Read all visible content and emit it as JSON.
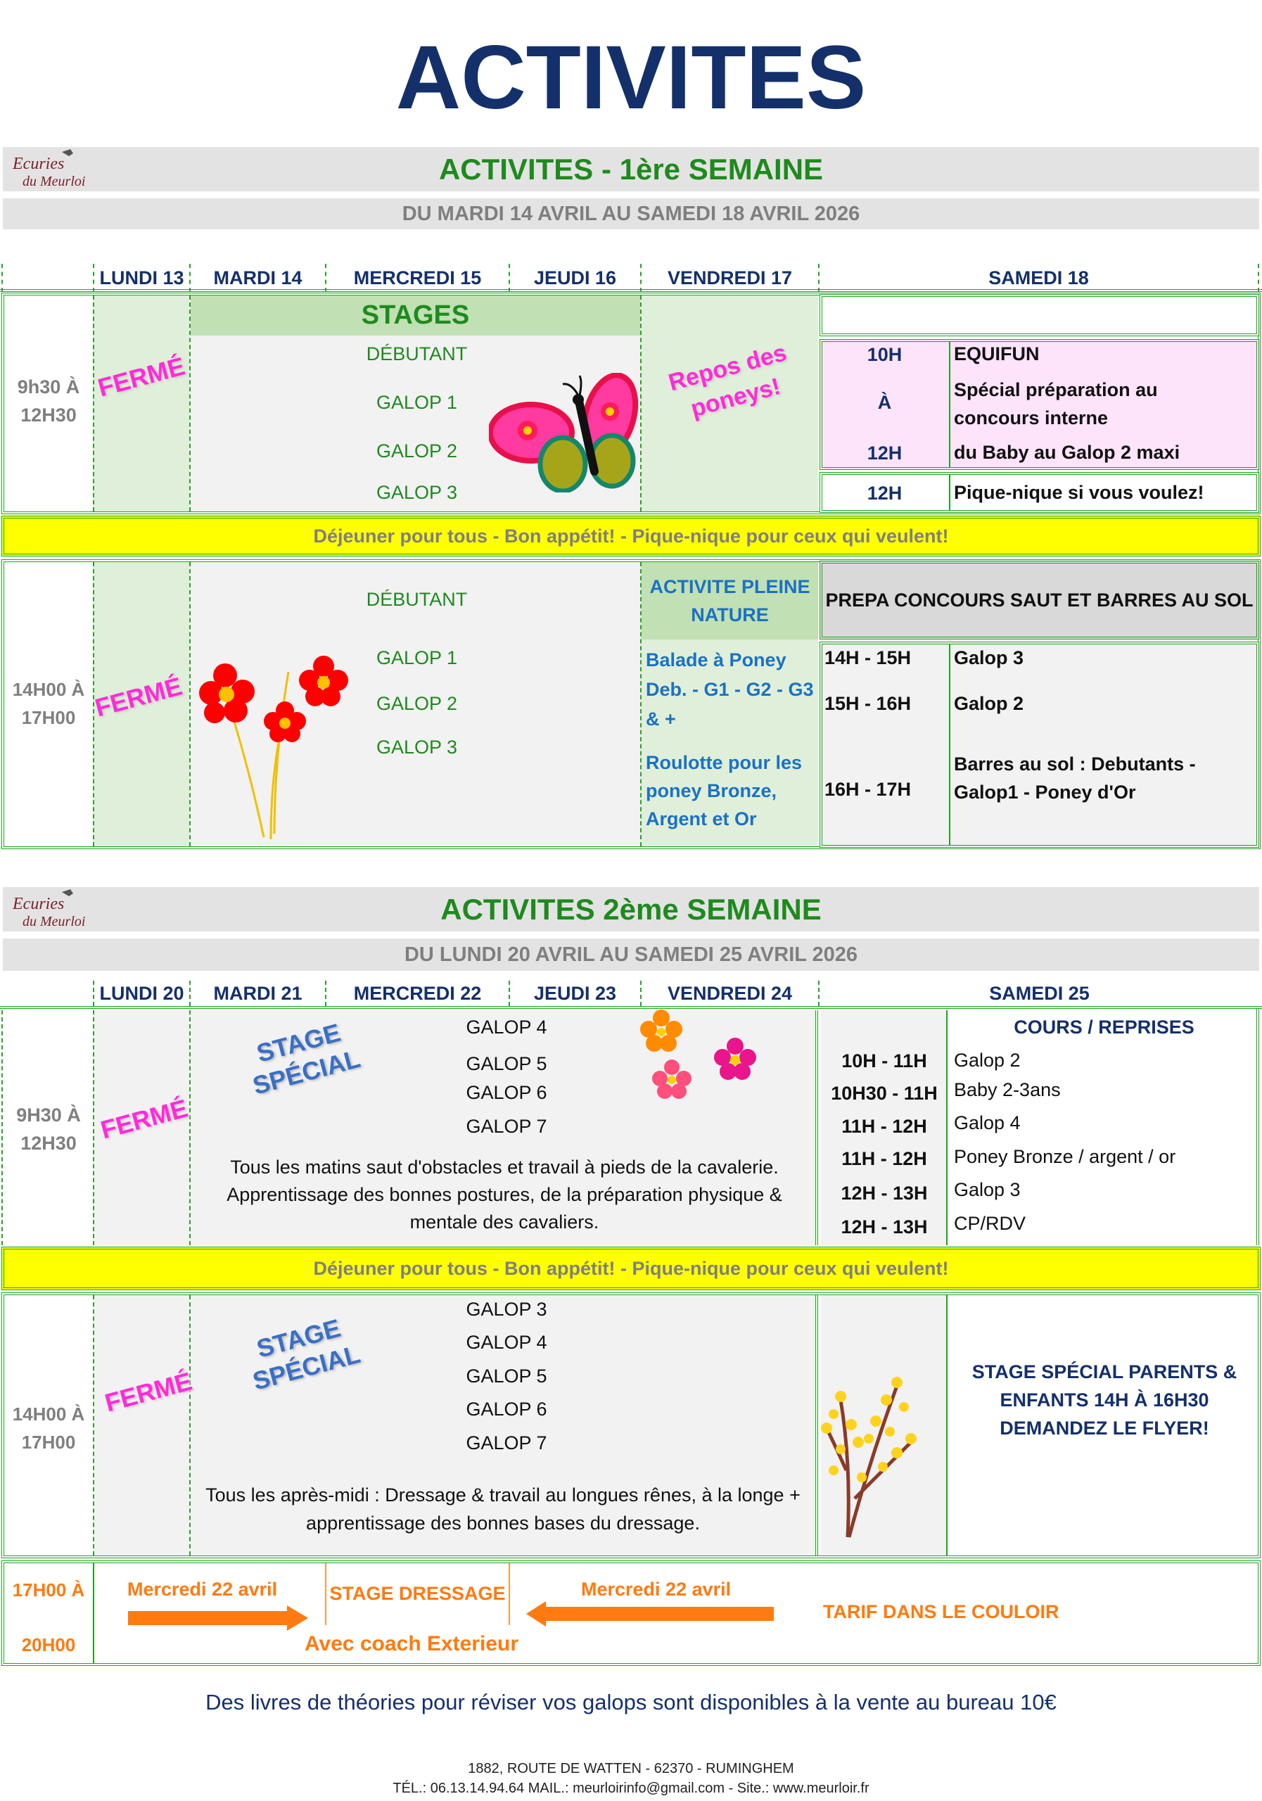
{
  "title": "ACTIVITES",
  "logo_text": "Ecuries du Meurloir",
  "week1": {
    "title": "ACTIVITES - 1ère SEMAINE",
    "dates": "DU MARDI 14 AVRIL AU SAMEDI 18 AVRIL 2026",
    "days": [
      "LUNDI 13",
      "MARDI 14",
      "MERCREDI 15",
      "JEUDI 16",
      "VENDREDI 17",
      "SAMEDI 18"
    ],
    "morning_time": [
      "9h30 À",
      "12H30"
    ],
    "closed": "FERMÉ",
    "stages_label": "STAGES",
    "morning_levels": [
      "DÉBUTANT",
      "GALOP 1",
      "GALOP 2",
      "GALOP 3"
    ],
    "friday_morning": "Repos des poneys!",
    "saturday_morning": {
      "start": "10H",
      "to": "À",
      "end": "12H",
      "title": "EQUIFUN",
      "desc1": "Spécial préparation au concours interne",
      "desc2": "du Baby au Galop 2 maxi",
      "picnic_time": "12H",
      "picnic": "Pique-nique si vous voulez!"
    },
    "lunch": "Déjeuner pour tous - Bon appétit!  - Pique-nique pour ceux qui veulent!",
    "afternoon_time": [
      "14H00 À",
      "17H00"
    ],
    "afternoon_levels": [
      "DÉBUTANT",
      "GALOP 1",
      "GALOP 2",
      "GALOP 3"
    ],
    "friday_afternoon": {
      "title": "ACTIVITE PLEINE NATURE",
      "item1": "Balade à Poney Deb. - G1 - G2 - G3 & +",
      "item2": "Roulotte pour les poney Bronze, Argent et Or"
    },
    "saturday_afternoon": {
      "title": "PREPA CONCOURS SAUT ET BARRES AU SOL",
      "rows": [
        {
          "time": "14H - 15H",
          "label": "Galop 3"
        },
        {
          "time": "15H - 16H",
          "label": "Galop 2"
        },
        {
          "time": "16H - 17H",
          "label": "Barres au sol : Debutants - Galop1 - Poney d'Or"
        }
      ]
    }
  },
  "week2": {
    "title": "ACTIVITES 2ème SEMAINE",
    "dates": "DU LUNDI 20 AVRIL AU SAMEDI 25 AVRIL 2026",
    "days": [
      "LUNDI 20",
      "MARDI 21",
      "MERCREDI 22",
      "JEUDI 23",
      "VENDREDI 24",
      "SAMEDI 25"
    ],
    "morning_time": [
      "9H30 À",
      "12H30"
    ],
    "closed": "FERMÉ",
    "stage_special": "STAGE SPÉCIAL",
    "morning_levels": [
      "GALOP 4",
      "GALOP 5",
      "GALOP 6",
      "GALOP 7"
    ],
    "morning_desc": "Tous les matins saut d'obstacles et travail à pieds de la cavalerie. Apprentissage des bonnes postures, de la  préparation physique & mentale des cavaliers.",
    "saturday_morning": {
      "title": "COURS / REPRISES",
      "rows": [
        {
          "time": "10H - 11H",
          "label": "Galop 2"
        },
        {
          "time": "10H30 - 11H",
          "label": "Baby 2-3ans"
        },
        {
          "time": "11H - 12H",
          "label": "Galop 4"
        },
        {
          "time": "11H - 12H",
          "label": "Poney Bronze / argent / or"
        },
        {
          "time": "12H - 13H",
          "label": "Galop 3"
        },
        {
          "time": "12H - 13H",
          "label": "CP/RDV"
        }
      ]
    },
    "lunch": "Déjeuner pour tous - Bon appétit!  - Pique-nique pour ceux qui veulent!",
    "afternoon_time": [
      "14H00 À",
      "17H00"
    ],
    "afternoon_levels": [
      "GALOP 3",
      "GALOP 4",
      "GALOP 5",
      "GALOP 6",
      "GALOP 7"
    ],
    "afternoon_desc": "Tous les après-midi : Dressage & travail au longues rênes, à la longe + apprentissage des bonnes bases du dressage.",
    "saturday_afternoon": "STAGE SPÉCIAL PARENTS & ENFANTS 14H À 16H30 DEMANDEZ LE FLYER!",
    "evening_time": [
      "17H00 À",
      "20H00"
    ],
    "evening": {
      "date_left": "Mercredi 22 avril",
      "stage": "STAGE DRESSAGE",
      "date_right": "Mercredi 22 avril",
      "coach": "Avec coach Exterieur",
      "tarif": "TARIF DANS LE COULOIR"
    }
  },
  "footer": {
    "books": "Des livres de théories pour réviser vos galops sont disponibles à la vente au bureau 10€",
    "address": "1882, ROUTE DE WATTEN - 62370 - RUMINGHEM",
    "contact": "TÉL.: 06.13.14.94.64 MAIL.: meurloirinfo@gmail.com - Site.: www.meurloir.fr"
  },
  "colors": {
    "navy": "#14306b",
    "green": "#1e8a1e",
    "magenta": "#ff2bd8",
    "yellow": "#ffff00",
    "orange": "#ff7a10",
    "pink": "#fde4fb",
    "lightgreen": "#e0efd9"
  }
}
